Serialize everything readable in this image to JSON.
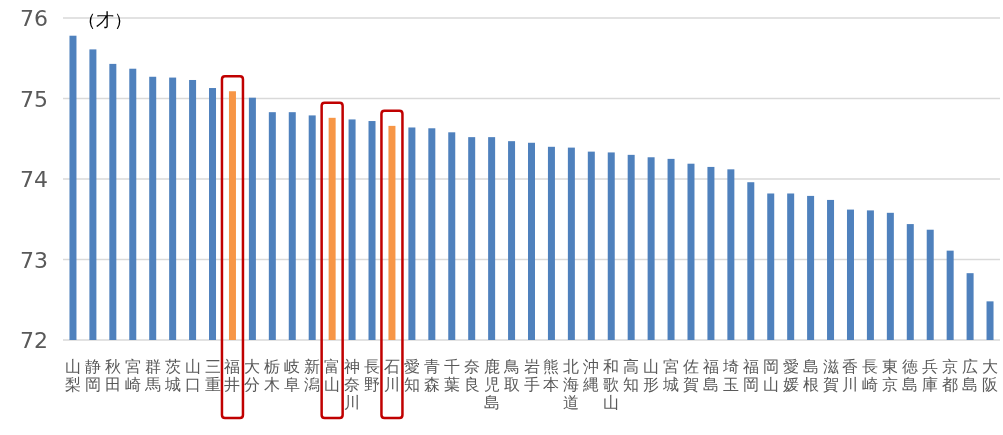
{
  "chart_data": {
    "type": "bar",
    "ylabel": "（才）",
    "categories": [
      "山梨",
      "静岡",
      "秋田",
      "宮崎",
      "群馬",
      "茨城",
      "山口",
      "三重",
      "福井",
      "大分",
      "栃木",
      "岐阜",
      "新潟",
      "富山",
      "神奈川",
      "長野",
      "石川",
      "愛知",
      "青森",
      "千葉",
      "奈良",
      "鹿児島",
      "鳥取",
      "岩手",
      "熊本",
      "北海道",
      "沖縄",
      "和歌山",
      "高知",
      "山形",
      "宮城",
      "佐賀",
      "福島",
      "埼玉",
      "福岡",
      "岡山",
      "愛媛",
      "島根",
      "滋賀",
      "香川",
      "長崎",
      "東京",
      "徳島",
      "兵庫",
      "京都",
      "広島",
      "大阪"
    ],
    "values": [
      75.78,
      75.61,
      75.43,
      75.37,
      75.27,
      75.26,
      75.23,
      75.13,
      75.09,
      75.01,
      74.83,
      74.83,
      74.79,
      74.76,
      74.74,
      74.72,
      74.66,
      74.64,
      74.63,
      74.58,
      74.52,
      74.52,
      74.47,
      74.45,
      74.4,
      74.39,
      74.34,
      74.33,
      74.3,
      74.27,
      74.25,
      74.19,
      74.15,
      74.12,
      73.96,
      73.82,
      73.82,
      73.79,
      73.74,
      73.62,
      73.61,
      73.58,
      73.44,
      73.37,
      73.11,
      72.83,
      72.48
    ],
    "colors": [
      "#4f81bd",
      "#4f81bd",
      "#4f81bd",
      "#4f81bd",
      "#4f81bd",
      "#4f81bd",
      "#4f81bd",
      "#4f81bd",
      "#f79646",
      "#4f81bd",
      "#4f81bd",
      "#4f81bd",
      "#4f81bd",
      "#f79646",
      "#4f81bd",
      "#4f81bd",
      "#f79646",
      "#4f81bd",
      "#4f81bd",
      "#4f81bd",
      "#4f81bd",
      "#4f81bd",
      "#4f81bd",
      "#4f81bd",
      "#4f81bd",
      "#4f81bd",
      "#4f81bd",
      "#4f81bd",
      "#4f81bd",
      "#4f81bd",
      "#4f81bd",
      "#4f81bd",
      "#4f81bd",
      "#4f81bd",
      "#4f81bd",
      "#4f81bd",
      "#4f81bd",
      "#4f81bd",
      "#4f81bd",
      "#4f81bd",
      "#4f81bd",
      "#4f81bd",
      "#4f81bd",
      "#4f81bd",
      "#4f81bd",
      "#4f81bd",
      "#4f81bd"
    ],
    "ylim": [
      72,
      76
    ],
    "yticks": [
      72,
      73,
      74,
      75,
      76
    ],
    "grid": "y"
  }
}
